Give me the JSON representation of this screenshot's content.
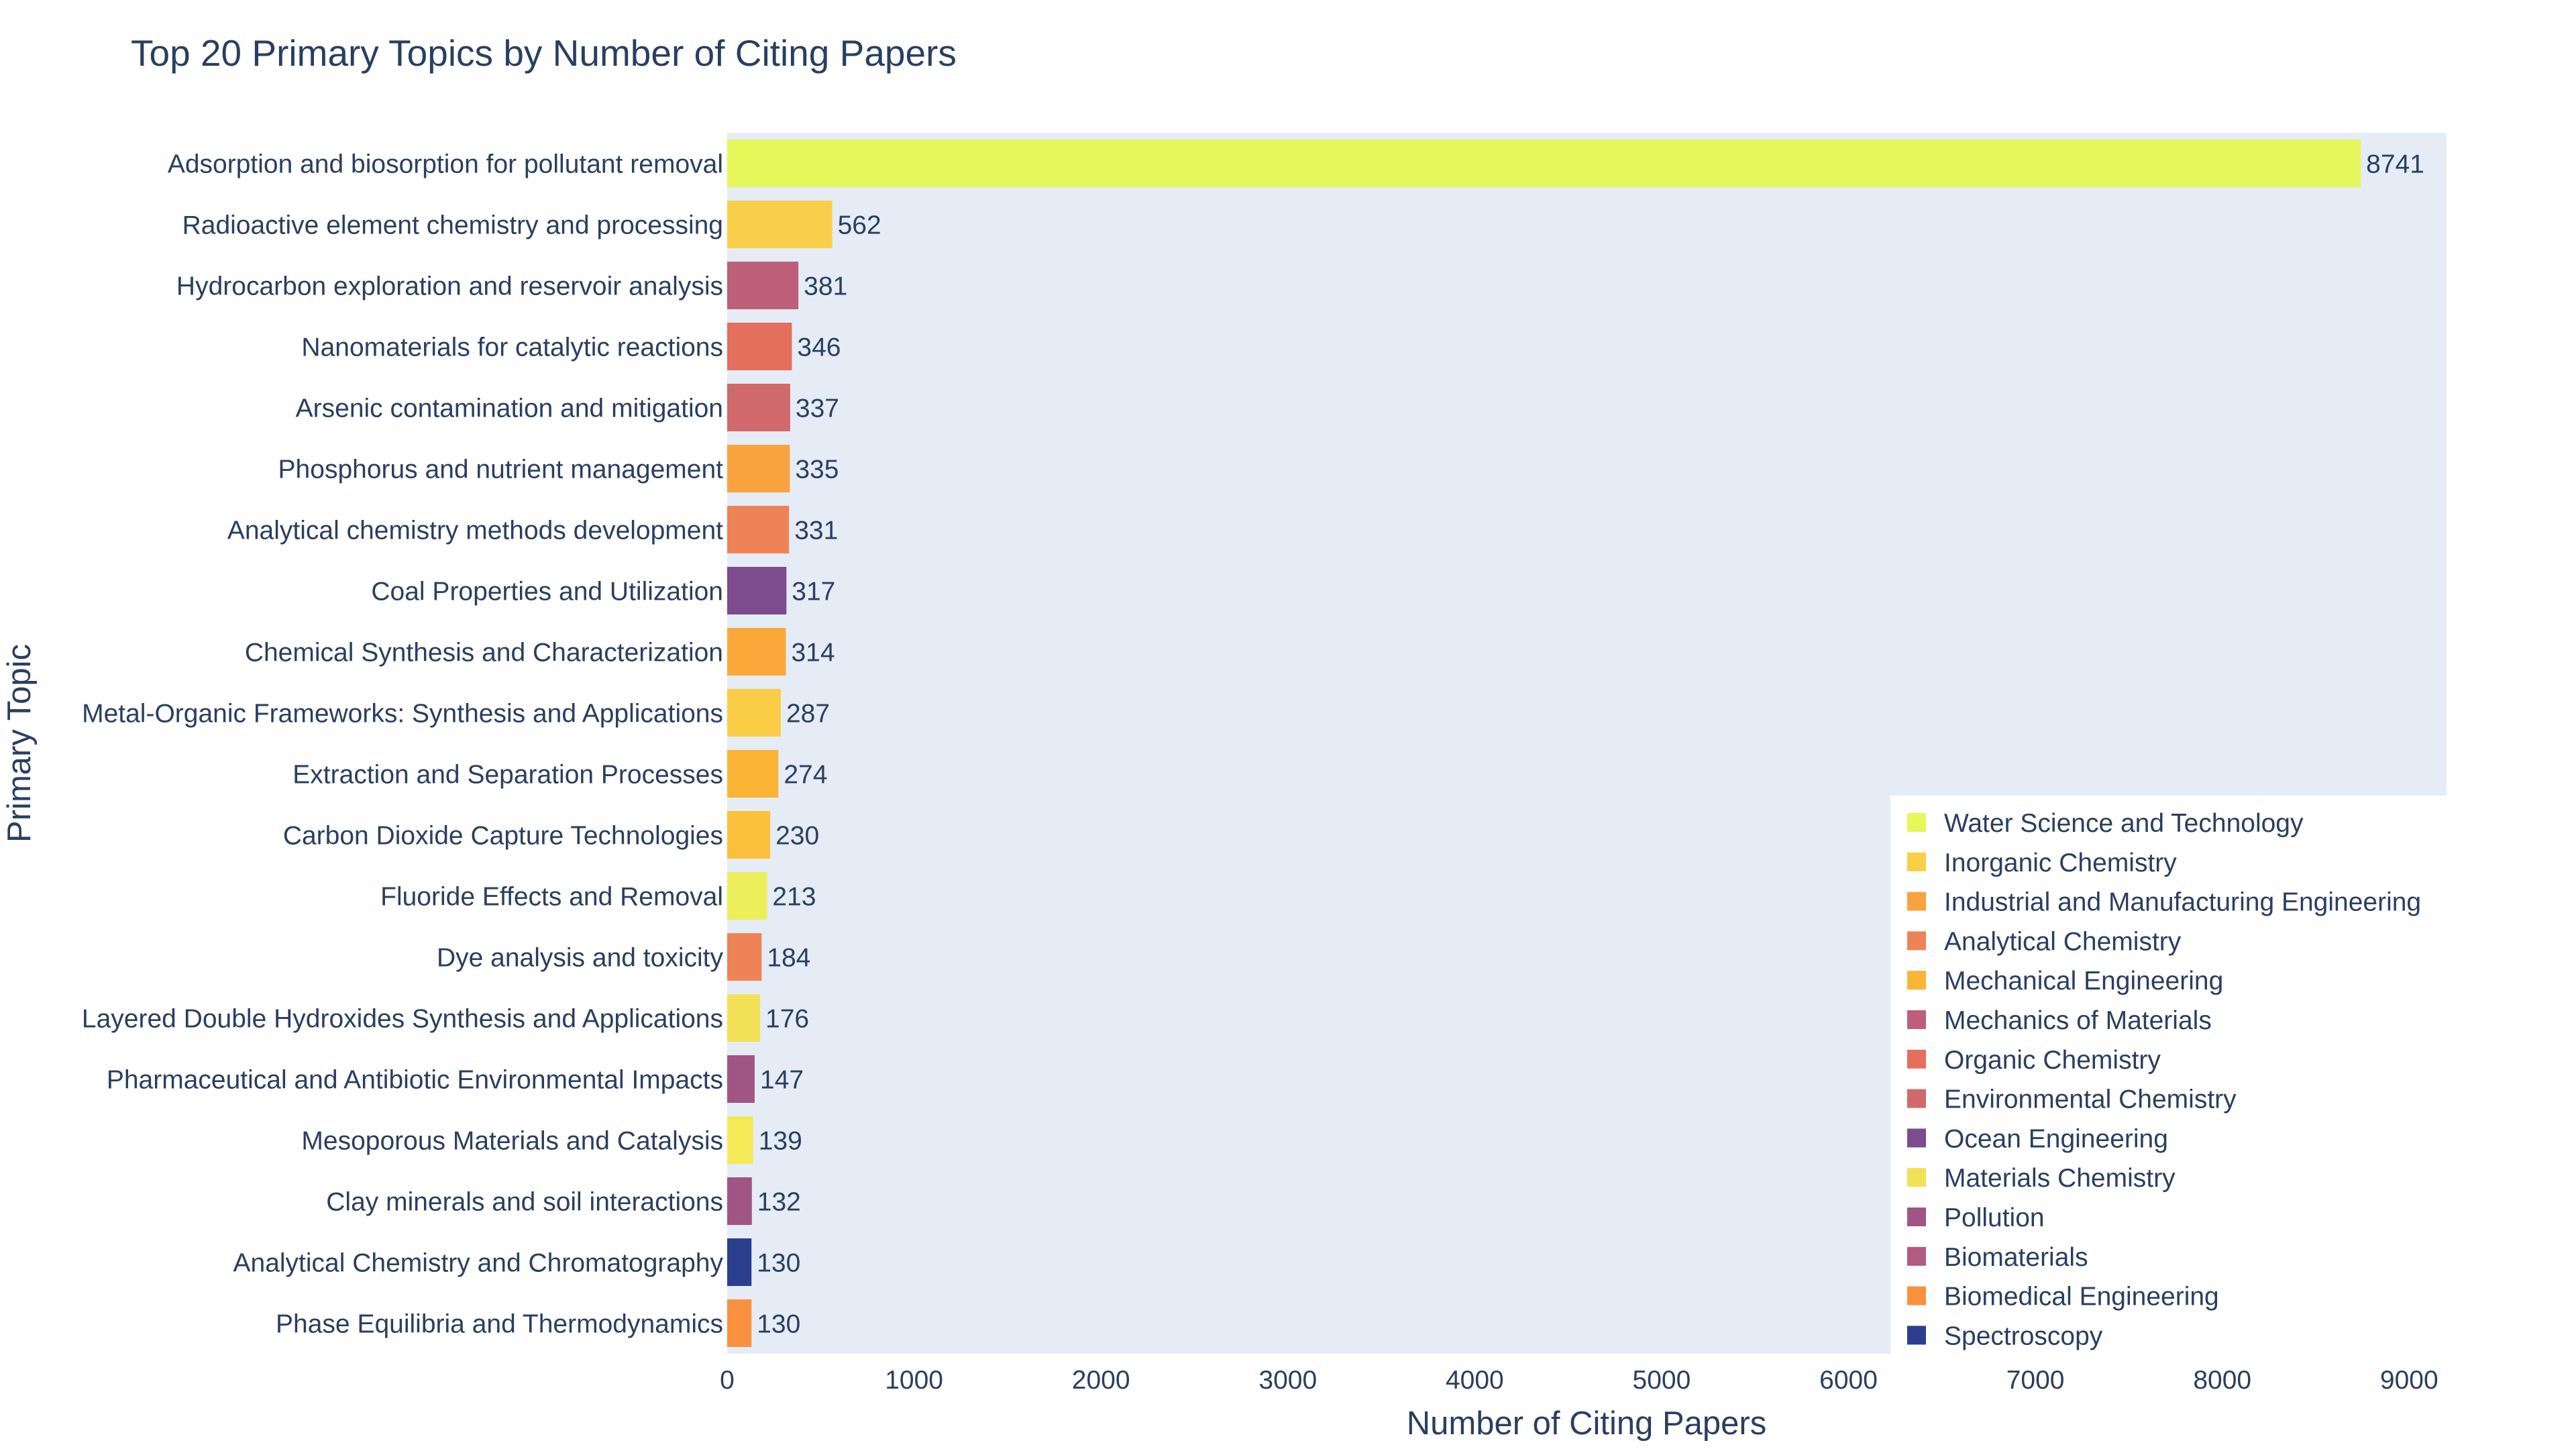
{
  "chart_data": {
    "type": "bar",
    "orientation": "horizontal",
    "title": "Top 20 Primary Topics by Number of Citing Papers",
    "xlabel": "Number of Citing Papers",
    "ylabel": "Primary Topic",
    "xlim": [
      0,
      9200
    ],
    "x_ticks": [
      0,
      1000,
      2000,
      3000,
      4000,
      5000,
      6000,
      7000,
      8000,
      9000
    ],
    "grid": false,
    "plot_background": "#e5ecf6",
    "legend_position": "bottom-right",
    "categories": [
      "Adsorption and biosorption for pollutant removal",
      "Radioactive element chemistry and processing",
      "Hydrocarbon exploration and reservoir analysis",
      "Nanomaterials for catalytic reactions",
      "Arsenic contamination and mitigation",
      "Phosphorus and nutrient management",
      "Analytical chemistry methods development",
      "Coal Properties and Utilization",
      "Chemical Synthesis and Characterization",
      "Metal-Organic Frameworks: Synthesis and Applications",
      "Extraction and Separation Processes",
      "Carbon Dioxide Capture Technologies",
      "Fluoride Effects and Removal",
      "Dye analysis and toxicity",
      "Layered Double Hydroxides Synthesis and Applications",
      "Pharmaceutical and Antibiotic Environmental Impacts",
      "Mesoporous Materials and Catalysis",
      "Clay minerals and soil interactions",
      "Analytical Chemistry and Chromatography",
      "Phase Equilibria and Thermodynamics"
    ],
    "values": [
      8741,
      562,
      381,
      346,
      337,
      335,
      331,
      317,
      314,
      287,
      274,
      230,
      213,
      184,
      176,
      147,
      139,
      132,
      130,
      130
    ],
    "value_labels": [
      "8741",
      "562",
      "381",
      "346",
      "337",
      "335",
      "331",
      "317",
      "314",
      "287",
      "274",
      "230",
      "213",
      "184",
      "176",
      "147",
      "139",
      "132",
      "130",
      "130"
    ],
    "bar_colors": [
      "#e6f75a",
      "#f9cf4a",
      "#bd5f78",
      "#e46f5d",
      "#d0696c",
      "#f9a340",
      "#ef8358",
      "#7d4b8e",
      "#fba83a",
      "#fbcc46",
      "#fcb437",
      "#fcc03a",
      "#ecee5a",
      "#ef8358",
      "#f2e156",
      "#a05585",
      "#f4ea57",
      "#a05585",
      "#2c3f8f",
      "#f8923f"
    ],
    "legend": [
      {
        "name": "Water Science and Technology",
        "color": "#e6f75a"
      },
      {
        "name": "Inorganic Chemistry",
        "color": "#f9cf4a"
      },
      {
        "name": "Industrial and Manufacturing Engineering",
        "color": "#f9a340"
      },
      {
        "name": "Analytical Chemistry",
        "color": "#ef8358"
      },
      {
        "name": "Mechanical Engineering",
        "color": "#fcb437"
      },
      {
        "name": "Mechanics of Materials",
        "color": "#bd5f78"
      },
      {
        "name": "Organic Chemistry",
        "color": "#e46f5d"
      },
      {
        "name": "Environmental Chemistry",
        "color": "#d0696c"
      },
      {
        "name": "Ocean Engineering",
        "color": "#7d4b8e"
      },
      {
        "name": "Materials Chemistry",
        "color": "#f2e156"
      },
      {
        "name": "Pollution",
        "color": "#a05585"
      },
      {
        "name": "Biomaterials",
        "color": "#b25a80"
      },
      {
        "name": "Biomedical Engineering",
        "color": "#f8923f"
      },
      {
        "name": "Spectroscopy",
        "color": "#2c3f8f"
      }
    ]
  }
}
